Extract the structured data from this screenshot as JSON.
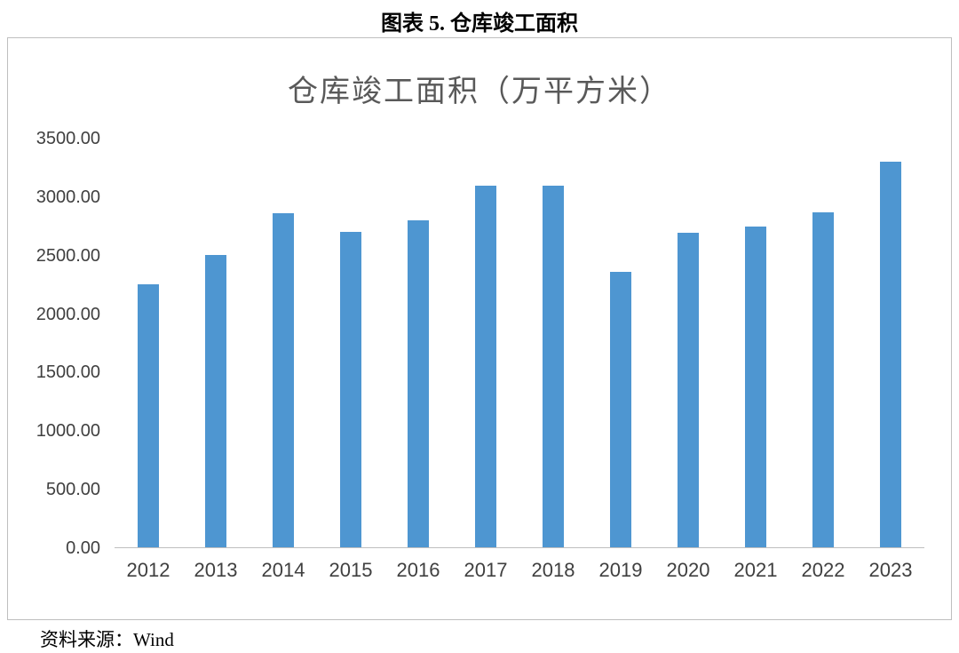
{
  "page_title": "图表 5. 仓库竣工面积",
  "source_note": "资料来源：Wind",
  "colors": {
    "bar": "#4E96D1",
    "chart_title_text": "#595959",
    "axis_text": "#404040",
    "frame_border": "#bfbfbf"
  },
  "chart_data": {
    "type": "bar",
    "title": "仓库竣工面积（万平方米）",
    "categories": [
      "2012",
      "2013",
      "2014",
      "2015",
      "2016",
      "2017",
      "2018",
      "2019",
      "2020",
      "2021",
      "2022",
      "2023"
    ],
    "values": [
      2250,
      2500,
      2860,
      2700,
      2800,
      3100,
      3100,
      2360,
      2690,
      2750,
      2870,
      3300
    ],
    "xlabel": "",
    "ylabel": "",
    "ylim": [
      0,
      3500
    ],
    "ytick_step": 500,
    "y_tick_labels": [
      "0.00",
      "500.00",
      "1000.00",
      "1500.00",
      "2000.00",
      "2500.00",
      "3000.00",
      "3500.00"
    ],
    "grid": false,
    "legend_position": "none"
  }
}
